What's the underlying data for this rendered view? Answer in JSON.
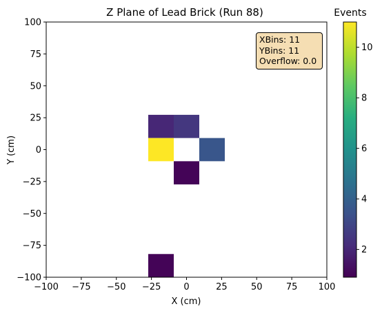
{
  "chart_data": {
    "type": "heatmap",
    "title": "Z Plane of Lead Brick (Run 88)",
    "xlabel": "X (cm)",
    "ylabel": "Y (cm)",
    "xlim": [
      -100,
      100
    ],
    "ylim": [
      -100,
      100
    ],
    "x_ticks": [
      -100,
      -75,
      -50,
      -25,
      0,
      25,
      50,
      75,
      100
    ],
    "y_ticks": [
      -100,
      -75,
      -50,
      -25,
      0,
      25,
      50,
      75,
      100
    ],
    "x_tick_labels": [
      "−100",
      "−75",
      "−50",
      "−25",
      "0",
      "25",
      "50",
      "75",
      "100"
    ],
    "y_tick_labels": [
      "−100",
      "−75",
      "−50",
      "−25",
      "0",
      "25",
      "50",
      "75",
      "100"
    ],
    "bin_edges": [
      -100,
      -81.82,
      -63.64,
      -45.45,
      -27.27,
      -9.09,
      9.09,
      27.27,
      45.45,
      63.64,
      81.82,
      100
    ],
    "colormap": "viridis",
    "bins": [
      {
        "x_range": [
          -27.27,
          -9.09
        ],
        "y_range": [
          9.09,
          27.27
        ],
        "value": 2
      },
      {
        "x_range": [
          -9.09,
          9.09
        ],
        "y_range": [
          9.09,
          27.27
        ],
        "value": 2.5
      },
      {
        "x_range": [
          -27.27,
          -9.09
        ],
        "y_range": [
          -9.09,
          9.09
        ],
        "value": 11
      },
      {
        "x_range": [
          9.09,
          27.27
        ],
        "y_range": [
          -9.09,
          9.09
        ],
        "value": 3.6
      },
      {
        "x_range": [
          -9.09,
          9.09
        ],
        "y_range": [
          -27.27,
          -9.09
        ],
        "value": 1
      },
      {
        "x_range": [
          -27.27,
          -9.09
        ],
        "y_range": [
          -100,
          -81.82
        ],
        "value": 1
      }
    ],
    "colorbar": {
      "label": "Events",
      "range": [
        0.9,
        11
      ],
      "ticks": [
        2,
        4,
        6,
        8,
        10
      ],
      "tick_labels": [
        "2",
        "4",
        "6",
        "8",
        "10"
      ]
    },
    "stats": {
      "xbins_label": "XBins: 11",
      "ybins_label": "YBins: 11",
      "overflow_label": "Overflow: 0.0"
    }
  }
}
